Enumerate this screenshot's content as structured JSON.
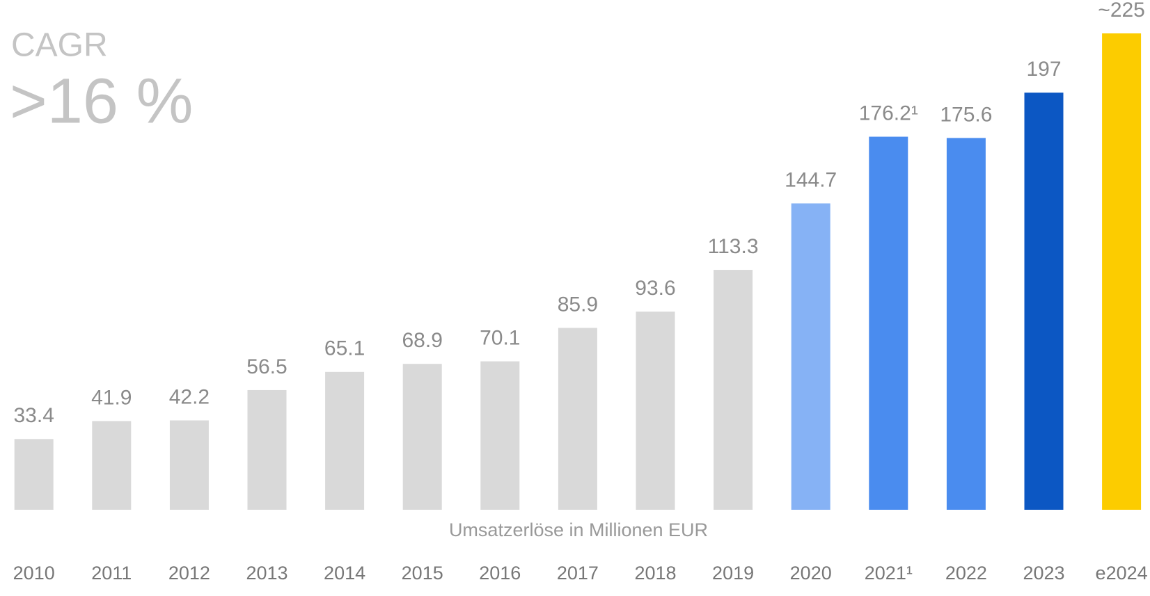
{
  "chart_data": {
    "type": "bar",
    "headline": "CAGR",
    "headline_value": ">16 %",
    "x_label": "Umsatzerlöse in Millionen EUR",
    "categories": [
      "2010",
      "2011",
      "2012",
      "2013",
      "2014",
      "2015",
      "2016",
      "2017",
      "2018",
      "2019",
      "2020",
      "2021¹",
      "2022",
      "2023",
      "e2024"
    ],
    "values": [
      33.4,
      41.9,
      42.2,
      56.5,
      65.1,
      68.9,
      70.1,
      85.9,
      93.6,
      113.3,
      144.7,
      176.2,
      175.6,
      197,
      225
    ],
    "value_labels": [
      "33.4",
      "41.9",
      "42.2",
      "56.5",
      "65.1",
      "68.9",
      "70.1",
      "85.9",
      "93.6",
      "113.3",
      "144.7",
      "176.2¹",
      "175.6",
      "197",
      "~225"
    ],
    "colors": [
      "#d9d9d9",
      "#d9d9d9",
      "#d9d9d9",
      "#d9d9d9",
      "#d9d9d9",
      "#d9d9d9",
      "#d9d9d9",
      "#d9d9d9",
      "#d9d9d9",
      "#d9d9d9",
      "#86b2f5",
      "#4a8cef",
      "#4a8cef",
      "#0c57c3",
      "#fccc00"
    ]
  }
}
